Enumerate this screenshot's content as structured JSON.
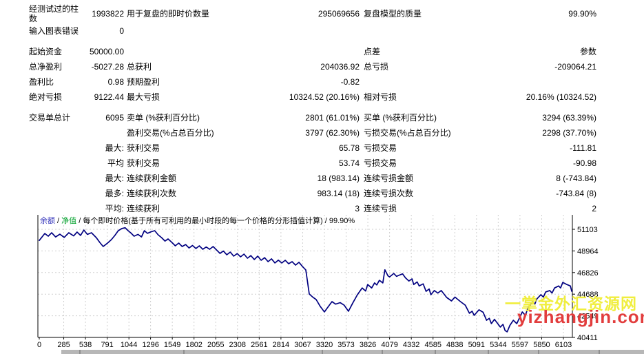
{
  "report_stats": {
    "sections": [
      {
        "rows": [
          [
            "经测试过的柱数",
            "1993822",
            "用于复盘的即时价数量",
            "295069656",
            "复盘模型的质量",
            "99.90%"
          ],
          [
            "输入图表错误",
            "0",
            "",
            "",
            "",
            ""
          ]
        ]
      },
      {
        "rows": [
          [
            "起始资金",
            "50000.00",
            "",
            "",
            "点差",
            "参数"
          ],
          [
            "总净盈利",
            "-5027.28",
            "总获利",
            "204036.92",
            "总亏损",
            "-209064.21"
          ],
          [
            "盈利比",
            "0.98",
            "预期盈利",
            "-0.82",
            "",
            ""
          ],
          [
            "绝对亏损",
            "9122.44",
            "最大亏损",
            "10324.52 (20.16%)",
            "相对亏损",
            "20.16% (10324.52)"
          ]
        ]
      },
      {
        "rows": [
          [
            "交易单总计",
            "6095",
            "卖单 (%获利百分比)",
            "2801 (61.01%)",
            "买单 (%获利百分比)",
            "3294 (63.39%)"
          ],
          [
            "",
            "",
            "盈利交易(%占总百分比)",
            "3797 (62.30%)",
            "亏损交易(%占总百分比)",
            "2298 (37.70%)"
          ],
          [
            "",
            "最大:",
            "获利交易",
            "65.78",
            "亏损交易",
            "-111.81"
          ],
          [
            "",
            "平均",
            "获利交易",
            "53.74",
            "亏损交易",
            "-90.98"
          ],
          [
            "",
            "最大:",
            "连续获利金额",
            "18 (983.14)",
            "连续亏损金额",
            "8 (-743.84)"
          ],
          [
            "",
            "最多:",
            "连续获利次数",
            "983.14 (18)",
            "连续亏损次数",
            "-743.84 (8)"
          ],
          [
            "",
            "平均:",
            "连续获利",
            "3",
            "连续亏损",
            "2"
          ]
        ]
      }
    ]
  },
  "chart_data": {
    "type": "line",
    "legend": {
      "separator": " / ",
      "items": [
        {
          "label": "余额",
          "color": "#3434bb"
        },
        {
          "label": "净值",
          "color": "#00a02a"
        },
        {
          "label": "每个即时价格(基于所有可利用的最小时段的每一个价格的分形插值计算)",
          "color": "#000000"
        },
        {
          "label": "99.90%",
          "color": "#000000"
        }
      ]
    },
    "x_ticks": [
      0,
      285,
      538,
      791,
      1044,
      1296,
      1549,
      1802,
      2055,
      2308,
      2561,
      2814,
      3067,
      3320,
      3573,
      3826,
      4079,
      4332,
      4585,
      4838,
      5091,
      5344,
      5597,
      5850,
      6103
    ],
    "y_ticks": [
      51103,
      48964,
      46826,
      44688,
      42549,
      40411
    ],
    "grid": true,
    "grid_color": "#cfcfcf",
    "axis_color": "#000000",
    "series": [
      {
        "name": "余额",
        "color": "#000080",
        "points": [
          [
            0,
            50000
          ],
          [
            64,
            50690
          ],
          [
            104,
            50420
          ],
          [
            144,
            50760
          ],
          [
            190,
            50350
          ],
          [
            240,
            50620
          ],
          [
            290,
            50300
          ],
          [
            344,
            50760
          ],
          [
            400,
            50450
          ],
          [
            440,
            50830
          ],
          [
            480,
            50500
          ],
          [
            520,
            51030
          ],
          [
            560,
            50600
          ],
          [
            608,
            50760
          ],
          [
            664,
            50280
          ],
          [
            704,
            49810
          ],
          [
            744,
            49400
          ],
          [
            790,
            49700
          ],
          [
            840,
            50080
          ],
          [
            880,
            50490
          ],
          [
            920,
            50970
          ],
          [
            960,
            51170
          ],
          [
            1000,
            51260
          ],
          [
            1030,
            51000
          ],
          [
            1064,
            50760
          ],
          [
            1104,
            50420
          ],
          [
            1150,
            50600
          ],
          [
            1190,
            50350
          ],
          [
            1224,
            50970
          ],
          [
            1260,
            50700
          ],
          [
            1300,
            50850
          ],
          [
            1344,
            50970
          ],
          [
            1384,
            50560
          ],
          [
            1424,
            50280
          ],
          [
            1464,
            49940
          ],
          [
            1500,
            50150
          ],
          [
            1544,
            49810
          ],
          [
            1584,
            49470
          ],
          [
            1624,
            49740
          ],
          [
            1664,
            49400
          ],
          [
            1704,
            49600
          ],
          [
            1744,
            49260
          ],
          [
            1784,
            49500
          ],
          [
            1824,
            49200
          ],
          [
            1864,
            49470
          ],
          [
            1904,
            49130
          ],
          [
            1944,
            49350
          ],
          [
            1984,
            49130
          ],
          [
            2024,
            49400
          ],
          [
            2064,
            49060
          ],
          [
            2104,
            48720
          ],
          [
            2144,
            48950
          ],
          [
            2184,
            48580
          ],
          [
            2224,
            48850
          ],
          [
            2264,
            48450
          ],
          [
            2304,
            48700
          ],
          [
            2344,
            48380
          ],
          [
            2384,
            48650
          ],
          [
            2424,
            48240
          ],
          [
            2464,
            48500
          ],
          [
            2504,
            48110
          ],
          [
            2544,
            48450
          ],
          [
            2584,
            48040
          ],
          [
            2624,
            48300
          ],
          [
            2664,
            47900
          ],
          [
            2704,
            48180
          ],
          [
            2744,
            47770
          ],
          [
            2784,
            48050
          ],
          [
            2824,
            47770
          ],
          [
            2864,
            48040
          ],
          [
            2904,
            47700
          ],
          [
            2944,
            47900
          ],
          [
            2984,
            47560
          ],
          [
            3024,
            47840
          ],
          [
            3064,
            47430
          ],
          [
            3104,
            47080
          ],
          [
            3124,
            45900
          ],
          [
            3144,
            44700
          ],
          [
            3184,
            44400
          ],
          [
            3224,
            44160
          ],
          [
            3270,
            43500
          ],
          [
            3320,
            42930
          ],
          [
            3360,
            43400
          ],
          [
            3408,
            43950
          ],
          [
            3450,
            43700
          ],
          [
            3504,
            43850
          ],
          [
            3550,
            43600
          ],
          [
            3600,
            43000
          ],
          [
            3650,
            43800
          ],
          [
            3704,
            44630
          ],
          [
            3760,
            45300
          ],
          [
            3800,
            45000
          ],
          [
            3824,
            45640
          ],
          [
            3870,
            45300
          ],
          [
            3904,
            45800
          ],
          [
            3930,
            45600
          ],
          [
            3960,
            46060
          ],
          [
            4000,
            45800
          ],
          [
            4024,
            47100
          ],
          [
            4060,
            46500
          ],
          [
            4080,
            46400
          ],
          [
            4128,
            46740
          ],
          [
            4160,
            46450
          ],
          [
            4184,
            46540
          ],
          [
            4230,
            46700
          ],
          [
            4264,
            46300
          ],
          [
            4304,
            45990
          ],
          [
            4340,
            46200
          ],
          [
            4360,
            45640
          ],
          [
            4400,
            45900
          ],
          [
            4424,
            45500
          ],
          [
            4470,
            45700
          ],
          [
            4504,
            44970
          ],
          [
            4540,
            45200
          ],
          [
            4560,
            44630
          ],
          [
            4600,
            45050
          ],
          [
            4640,
            44800
          ],
          [
            4680,
            45050
          ],
          [
            4744,
            44360
          ],
          [
            4800,
            44020
          ],
          [
            4840,
            44400
          ],
          [
            4904,
            43950
          ],
          [
            4960,
            43600
          ],
          [
            5008,
            42800
          ],
          [
            5040,
            43000
          ],
          [
            5064,
            42590
          ],
          [
            5120,
            43140
          ],
          [
            5168,
            42900
          ],
          [
            5208,
            42110
          ],
          [
            5240,
            42300
          ],
          [
            5264,
            41770
          ],
          [
            5300,
            42200
          ],
          [
            5368,
            41430
          ],
          [
            5400,
            41700
          ],
          [
            5424,
            41090
          ],
          [
            5448,
            40960
          ],
          [
            5480,
            41600
          ],
          [
            5520,
            42110
          ],
          [
            5560,
            41770
          ],
          [
            5624,
            42930
          ],
          [
            5660,
            42600
          ],
          [
            5688,
            43300
          ],
          [
            5744,
            43950
          ],
          [
            5770,
            43700
          ],
          [
            5792,
            44200
          ],
          [
            5840,
            44630
          ],
          [
            5870,
            44400
          ],
          [
            5896,
            44900
          ],
          [
            5944,
            45050
          ],
          [
            5970,
            44800
          ],
          [
            6000,
            45300
          ],
          [
            6048,
            45500
          ],
          [
            6070,
            45300
          ],
          [
            6096,
            45850
          ],
          [
            6144,
            45640
          ],
          [
            6184,
            45500
          ],
          [
            6200,
            44973
          ]
        ]
      }
    ]
  },
  "watermark": {
    "line1": "一掌金外汇资源网",
    "line1_color": "#f0ee3e",
    "line2": "yizhangjin.com",
    "line2_color": "#e23d3d"
  },
  "bottom_bar": {
    "color": "#b7b7b7",
    "segment_widths": [
      26,
      152,
      203,
      87,
      76,
      77,
      72,
      88,
      65
    ]
  }
}
